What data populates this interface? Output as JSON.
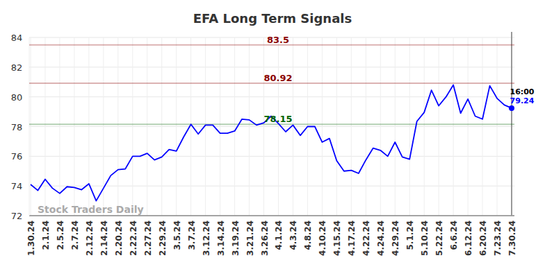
{
  "chart_data": {
    "type": "line",
    "title": "EFA Long Term Signals",
    "categories": [
      "1.30.24",
      null,
      "2.1.24",
      null,
      "2.5.24",
      null,
      "2.7.24",
      null,
      "2.12.24",
      null,
      "2.14.24",
      null,
      "2.20.24",
      null,
      "2.22.24",
      null,
      "2.27.24",
      null,
      "2.29.24",
      null,
      "3.5.24",
      null,
      "3.7.24",
      null,
      "3.12.24",
      null,
      "3.14.24",
      null,
      "3.19.24",
      null,
      "3.21.24",
      null,
      "3.26.24",
      null,
      "4.1.24",
      null,
      "4.3.24",
      null,
      "4.8.24",
      null,
      "4.10.24",
      null,
      "4.15.24",
      null,
      "4.17.24",
      null,
      "4.22.24",
      null,
      "4.24.24",
      null,
      "4.29.24",
      null,
      "5.1.24",
      null,
      "5.10.24",
      null,
      "5.22.24",
      null,
      "6.6.24",
      null,
      "6.12.24",
      null,
      "6.20.24",
      null,
      "7.23.24",
      null,
      "7.30.24"
    ],
    "values": [
      74.1,
      73.7,
      74.45,
      73.85,
      73.5,
      73.95,
      73.9,
      73.75,
      74.15,
      73.0,
      73.85,
      74.7,
      75.1,
      75.15,
      76.0,
      76.0,
      76.2,
      75.75,
      75.95,
      76.45,
      76.35,
      77.3,
      78.15,
      77.5,
      78.1,
      78.1,
      77.55,
      77.55,
      77.7,
      78.5,
      78.45,
      78.1,
      78.25,
      78.7,
      78.2,
      77.65,
      78.1,
      77.4,
      78.0,
      78.0,
      76.95,
      77.2,
      75.7,
      75.0,
      75.05,
      74.85,
      75.75,
      76.55,
      76.4,
      76.0,
      76.95,
      75.95,
      75.8,
      78.35,
      78.95,
      80.45,
      79.4,
      80.0,
      80.8,
      78.9,
      79.85,
      78.7,
      78.5,
      80.75,
      79.9,
      79.45,
      79.24
    ],
    "color": "#0000ff",
    "ylim": [
      72,
      84
    ],
    "yticks": [
      72,
      74,
      76,
      78,
      80,
      82,
      84
    ],
    "grid": true,
    "reference_lines": [
      {
        "value": 83.5,
        "color": "#8b0000"
      },
      {
        "value": 80.92,
        "color": "#8b0000"
      },
      {
        "value": 78.15,
        "color": "#006400"
      }
    ],
    "last_point_label": "16:00",
    "watermark": "Stock Traders Daily"
  }
}
